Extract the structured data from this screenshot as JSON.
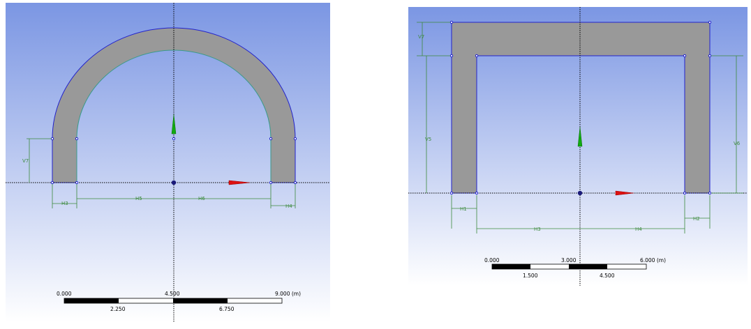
{
  "colors": {
    "bg_top": "#7b96e3",
    "bg_bottom": "#ffffff",
    "body_fill": "#999999",
    "edge": "#2222cc",
    "inner_edge": "#3a9a8a",
    "dimension": "#3c8a3c",
    "x_axis": "#dd1111",
    "y_axis": "#11aa11"
  },
  "viewport_left": {
    "dimensions": {
      "v7": "V7",
      "h3": "H3",
      "h5": "H5",
      "h6": "H6",
      "h4": "H4"
    },
    "scale": {
      "top_labels": [
        "0.000",
        "4.500",
        "9.000 (m)"
      ],
      "bottom_labels": [
        "2.250",
        "6.750"
      ]
    }
  },
  "viewport_right": {
    "dimensions": {
      "v7": "V7",
      "v5": "V5",
      "v6": "V6",
      "h1": "H1",
      "h3": "H3",
      "h4": "H4",
      "h2": "H2"
    },
    "scale": {
      "top_labels": [
        "0.000",
        "3.000",
        "6.000 (m)"
      ],
      "bottom_labels": [
        "1.500",
        "4.500"
      ]
    }
  }
}
